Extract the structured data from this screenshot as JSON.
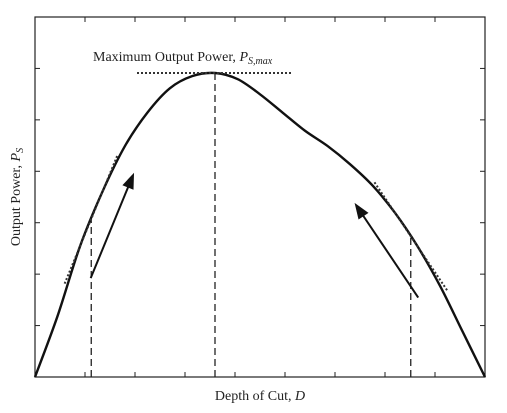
{
  "chart_data": {
    "type": "line",
    "xlabel": "Depth of Cut, D",
    "ylabel": "Output Power, Ps",
    "xlim": [
      0,
      1
    ],
    "ylim": [
      0,
      1
    ],
    "grid": false,
    "x_ticks": 9,
    "y_ticks": 7,
    "series": [
      {
        "x": [
          0,
          0.05,
          0.1,
          0.15,
          0.2,
          0.25,
          0.3,
          0.35,
          0.4,
          0.45,
          0.5,
          0.55,
          0.6,
          0.65,
          0.7,
          0.75,
          0.8,
          0.85,
          0.9,
          0.95,
          1.0
        ],
        "values": [
          0,
          0.2,
          0.43,
          0.61,
          0.76,
          0.87,
          0.95,
          0.99,
          1.0,
          0.98,
          0.93,
          0.87,
          0.81,
          0.76,
          0.7,
          0.63,
          0.54,
          0.43,
          0.3,
          0.15,
          0
        ]
      }
    ],
    "annotations": {
      "max_label_main": "Maximum Output Power, ",
      "max_label_symbol": "P",
      "max_label_sub": "S,max",
      "xlabel_main": "Depth of Cut, ",
      "xlabel_symbol": "D",
      "ylabel_main": "Output Power, ",
      "ylabel_symbol": "P",
      "ylabel_sub": "S",
      "peak_x": 0.4,
      "left_tangent_x": 0.125,
      "right_tangent_x": 0.835
    }
  }
}
